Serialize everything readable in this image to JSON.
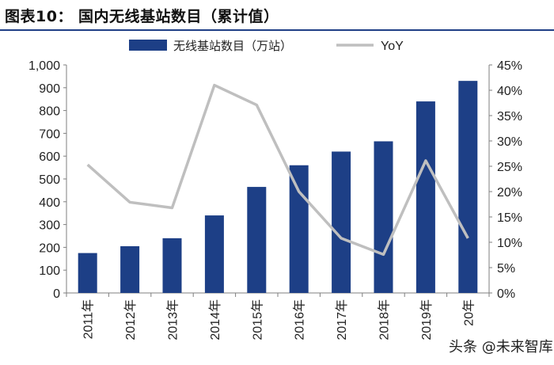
{
  "header": {
    "title": "图表10：   国内无线基站数目（累计值）"
  },
  "watermark": {
    "text": "头条 @未来智库"
  },
  "colors": {
    "bar": "#1d3f86",
    "line": "#bfbfbf",
    "axis": "#7f7f7f",
    "title_rule": "#1f3f86"
  },
  "chart_data": {
    "type": "bar",
    "categories": [
      "2011年",
      "2012年",
      "2013年",
      "2014年",
      "2015年",
      "2016年",
      "2017年",
      "2018年",
      "2019年",
      "20年"
    ],
    "series": [
      {
        "name": "无线基站数目（万站）",
        "type": "bar",
        "axis": "left",
        "values": [
          175,
          205,
          240,
          340,
          465,
          560,
          620,
          665,
          840,
          930
        ]
      },
      {
        "name": "YoY",
        "type": "line",
        "axis": "right",
        "values": [
          25.3,
          17.9,
          16.8,
          41.0,
          37.1,
          20.0,
          10.8,
          7.6,
          26.1,
          10.8
        ]
      }
    ],
    "y_left": {
      "min": 0,
      "max": 1000,
      "step": 100,
      "tick_labels": [
        "0",
        "100",
        "200",
        "300",
        "400",
        "500",
        "600",
        "700",
        "800",
        "900",
        "1,000"
      ]
    },
    "y_right": {
      "min": 0,
      "max": 45,
      "step": 5,
      "tick_labels": [
        "0%",
        "5%",
        "10%",
        "15%",
        "20%",
        "25%",
        "30%",
        "35%",
        "40%",
        "45%"
      ]
    },
    "grid": false,
    "legend_position": "top"
  }
}
